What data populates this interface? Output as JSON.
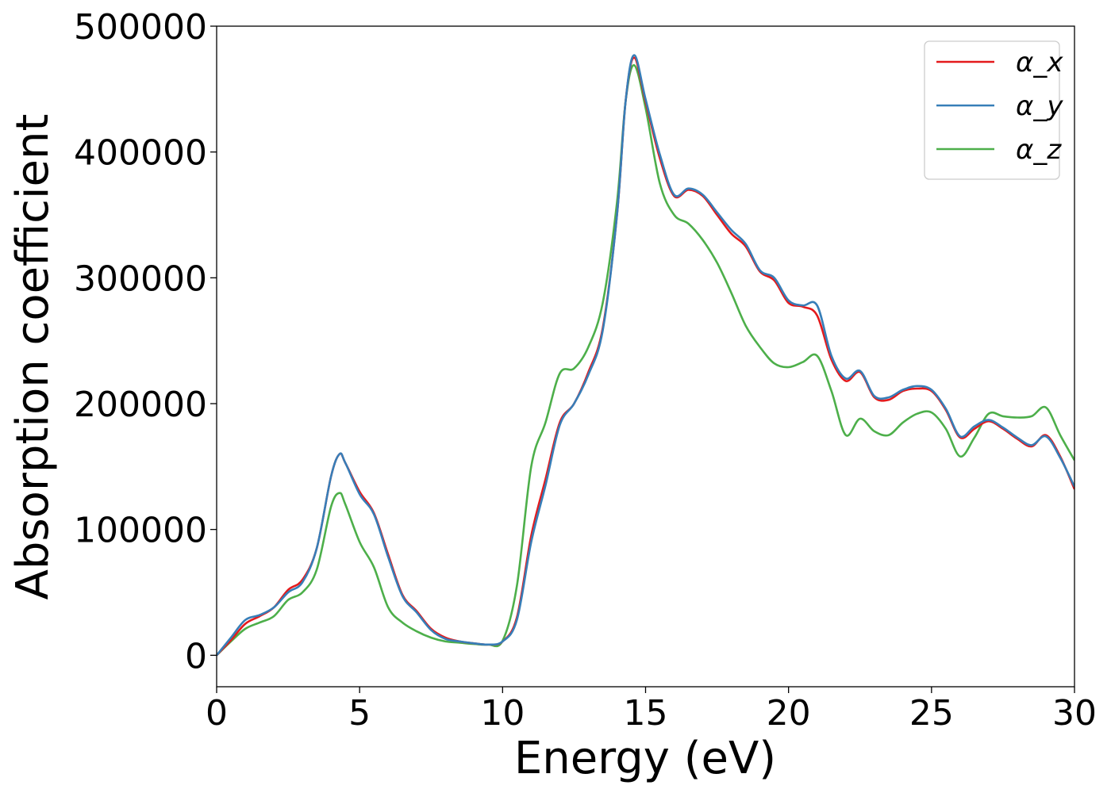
{
  "chart_data": {
    "type": "line",
    "title": "",
    "xlabel": "Energy (eV)",
    "ylabel": "Absorption coefficient",
    "xlim": [
      0,
      30
    ],
    "ylim": [
      -25000,
      500000
    ],
    "xticks": [
      0,
      5,
      10,
      15,
      20,
      25,
      30
    ],
    "yticks": [
      0,
      100000,
      200000,
      300000,
      400000,
      500000
    ],
    "xtick_labels": [
      "0",
      "5",
      "10",
      "15",
      "20",
      "25",
      "30"
    ],
    "ytick_labels": [
      "0",
      "100000",
      "200000",
      "300000",
      "400000",
      "500000"
    ],
    "grid": false,
    "legend_position": "top-right",
    "x": [
      0,
      0.5,
      1,
      1.5,
      2,
      2.5,
      3,
      3.5,
      4,
      4.3,
      4.5,
      5,
      5.5,
      6,
      6.5,
      7,
      7.5,
      8,
      8.5,
      9,
      9.5,
      10,
      10.5,
      11,
      11.5,
      12,
      12.5,
      13,
      13.5,
      14,
      14.3,
      14.6,
      15,
      15.5,
      16,
      16.5,
      17,
      17.5,
      18,
      18.5,
      19,
      19.5,
      20,
      20.5,
      21,
      21.5,
      22,
      22.5,
      23,
      23.5,
      24,
      24.5,
      25,
      25.5,
      26,
      26.5,
      27,
      27.5,
      28,
      28.5,
      29,
      29.5,
      30
    ],
    "series": [
      {
        "name": "α_x",
        "color": "#e41a1c",
        "values": [
          0,
          12000,
          25000,
          31000,
          38000,
          52000,
          60000,
          85000,
          142000,
          160000,
          153000,
          130000,
          113000,
          80000,
          48000,
          35000,
          21000,
          14000,
          11000,
          9500,
          8500,
          11000,
          30000,
          95000,
          140000,
          185000,
          200000,
          225000,
          260000,
          350000,
          440000,
          475000,
          440000,
          395000,
          365000,
          370000,
          365000,
          350000,
          335000,
          325000,
          305000,
          298000,
          280000,
          277000,
          270000,
          235000,
          218000,
          225000,
          205000,
          203000,
          210000,
          212000,
          210000,
          195000,
          173000,
          180000,
          186000,
          180000,
          172000,
          166000,
          175000,
          158000,
          132000
        ]
      },
      {
        "name": "α_y",
        "color": "#377eb8",
        "values": [
          0,
          14000,
          28000,
          32000,
          38000,
          50000,
          58000,
          85000,
          142000,
          160000,
          153000,
          128000,
          112000,
          78000,
          47000,
          34000,
          20000,
          13000,
          11000,
          9500,
          8500,
          11000,
          28000,
          90000,
          135000,
          183000,
          200000,
          223000,
          258000,
          350000,
          440000,
          477000,
          442000,
          398000,
          366000,
          371000,
          366000,
          352000,
          338000,
          327000,
          306000,
          300000,
          282000,
          278000,
          278000,
          238000,
          220000,
          226000,
          206000,
          205000,
          211000,
          214000,
          211000,
          196000,
          174000,
          182000,
          187000,
          181000,
          173000,
          167000,
          174000,
          157000,
          134000
        ]
      },
      {
        "name": "α_z",
        "color": "#4daf4a",
        "values": [
          0,
          11000,
          21000,
          26000,
          31000,
          44000,
          50000,
          68000,
          118000,
          129000,
          120000,
          90000,
          70000,
          38000,
          26000,
          19000,
          14000,
          11000,
          10000,
          9000,
          8500,
          11500,
          55000,
          150000,
          185000,
          224000,
          228000,
          245000,
          280000,
          360000,
          440000,
          469000,
          435000,
          375000,
          350000,
          343000,
          330000,
          312000,
          288000,
          262000,
          245000,
          232000,
          229000,
          233000,
          238000,
          210000,
          175000,
          188000,
          178000,
          175000,
          185000,
          192000,
          193000,
          180000,
          158000,
          173000,
          192000,
          190000,
          189000,
          190000,
          197000,
          175000,
          155000
        ]
      }
    ]
  }
}
